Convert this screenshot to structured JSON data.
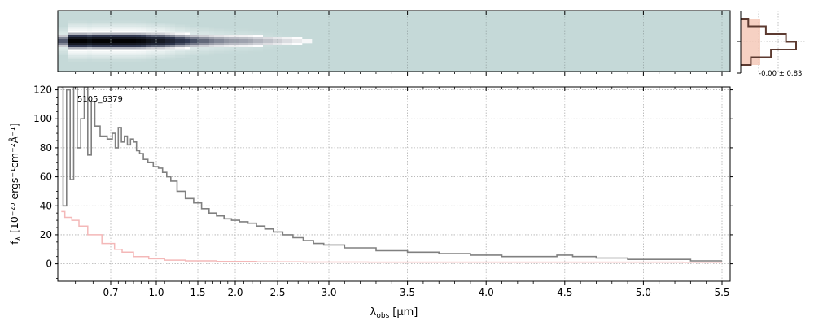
{
  "chart_data": [
    {
      "type": "heatmap",
      "panel": "2d-spectrum",
      "x_axis": "lambda_obs",
      "xlim": [
        0.55,
        5.52
      ],
      "colormap": [
        "#c5d9d8",
        "#ffffff",
        "#323a52",
        "#000000"
      ],
      "grid": true,
      "profile_center": 0.0,
      "profile_halfwidth_upper": 0.5,
      "profile_halfwidth_lower": 0.35
    },
    {
      "type": "histogram",
      "panel": "pixel-histogram",
      "annotation": "-0.00 ± 0.83",
      "bin_centers": [
        -2.5,
        -1.5,
        -0.5,
        0.5,
        1.5,
        2.5
      ],
      "counts": [
        3,
        10,
        18,
        22,
        12,
        4
      ],
      "fill_color": "#f4c6b4",
      "line_color": "#5c3a30",
      "grid": true
    },
    {
      "type": "line",
      "panel": "1d-spectrum",
      "label": "5105_6379",
      "xlabel_base": "λ",
      "xlabel_sub": "obs",
      "xlabel_unit": "[μm]",
      "ylabel_base": "f",
      "ylabel_sub": "λ",
      "ylabel_unit": "[10⁻²⁰ ergs⁻¹cm⁻²Å⁻¹]",
      "xlim": [
        0.55,
        5.52
      ],
      "ylim": [
        -12,
        122
      ],
      "xticks": [
        0.7,
        1.0,
        1.5,
        2.0,
        2.5,
        3.0,
        3.5,
        4.0,
        4.5,
        5.0,
        5.5
      ],
      "xtick_labels": [
        "0.7",
        "1.0",
        "1.5",
        "2.0",
        "2.5",
        "3.0",
        "3.5",
        "4.0",
        "4.5",
        "5.0",
        "5.5"
      ],
      "yticks": [
        0,
        20,
        40,
        60,
        80,
        100,
        120
      ],
      "ytick_labels": [
        "0",
        "20",
        "40",
        "60",
        "80",
        "100",
        "120"
      ],
      "grid": true,
      "series": [
        {
          "role": "flux",
          "color": "#808080",
          "x": [
            0.56,
            0.57,
            0.58,
            0.59,
            0.6,
            0.61,
            0.62,
            0.63,
            0.64,
            0.65,
            0.66,
            0.68,
            0.7,
            0.72,
            0.74,
            0.76,
            0.78,
            0.8,
            0.82,
            0.84,
            0.86,
            0.88,
            0.9,
            0.93,
            0.96,
            1.0,
            1.05,
            1.1,
            1.15,
            1.2,
            1.3,
            1.4,
            1.5,
            1.6,
            1.7,
            1.8,
            1.9,
            2.0,
            2.1,
            2.2,
            2.3,
            2.4,
            2.5,
            2.6,
            2.7,
            2.8,
            2.9,
            3.0,
            3.2,
            3.4,
            3.6,
            3.8,
            4.0,
            4.2,
            4.4,
            4.5,
            4.6,
            4.8,
            5.0,
            5.2,
            5.4,
            5.5
          ],
          "y": [
            122,
            40,
            120,
            58,
            122,
            80,
            100,
            122,
            75,
            112,
            95,
            88,
            86,
            90,
            80,
            94,
            84,
            88,
            82,
            86,
            84,
            78,
            76,
            72,
            70,
            67,
            66,
            63,
            60,
            57,
            50,
            45,
            42,
            38,
            35,
            33,
            31,
            30,
            29,
            28,
            26,
            24,
            22,
            20,
            18,
            16,
            14,
            13,
            11,
            9,
            8,
            7,
            6,
            5,
            5,
            6,
            5,
            4,
            3,
            3,
            2,
            2
          ]
        },
        {
          "role": "error",
          "color": "#f4b8b8",
          "x": [
            0.56,
            0.58,
            0.6,
            0.62,
            0.65,
            0.7,
            0.75,
            0.8,
            0.9,
            1.0,
            1.2,
            1.5,
            2.0,
            2.5,
            3.0,
            3.5,
            4.0,
            4.5,
            5.0,
            5.5
          ],
          "y": [
            36,
            32,
            30,
            26,
            20,
            14,
            10,
            8,
            5,
            3.5,
            2.5,
            2,
            1.6,
            1.3,
            1.2,
            1.1,
            1.1,
            1.1,
            1.1,
            1.0
          ]
        }
      ]
    }
  ]
}
